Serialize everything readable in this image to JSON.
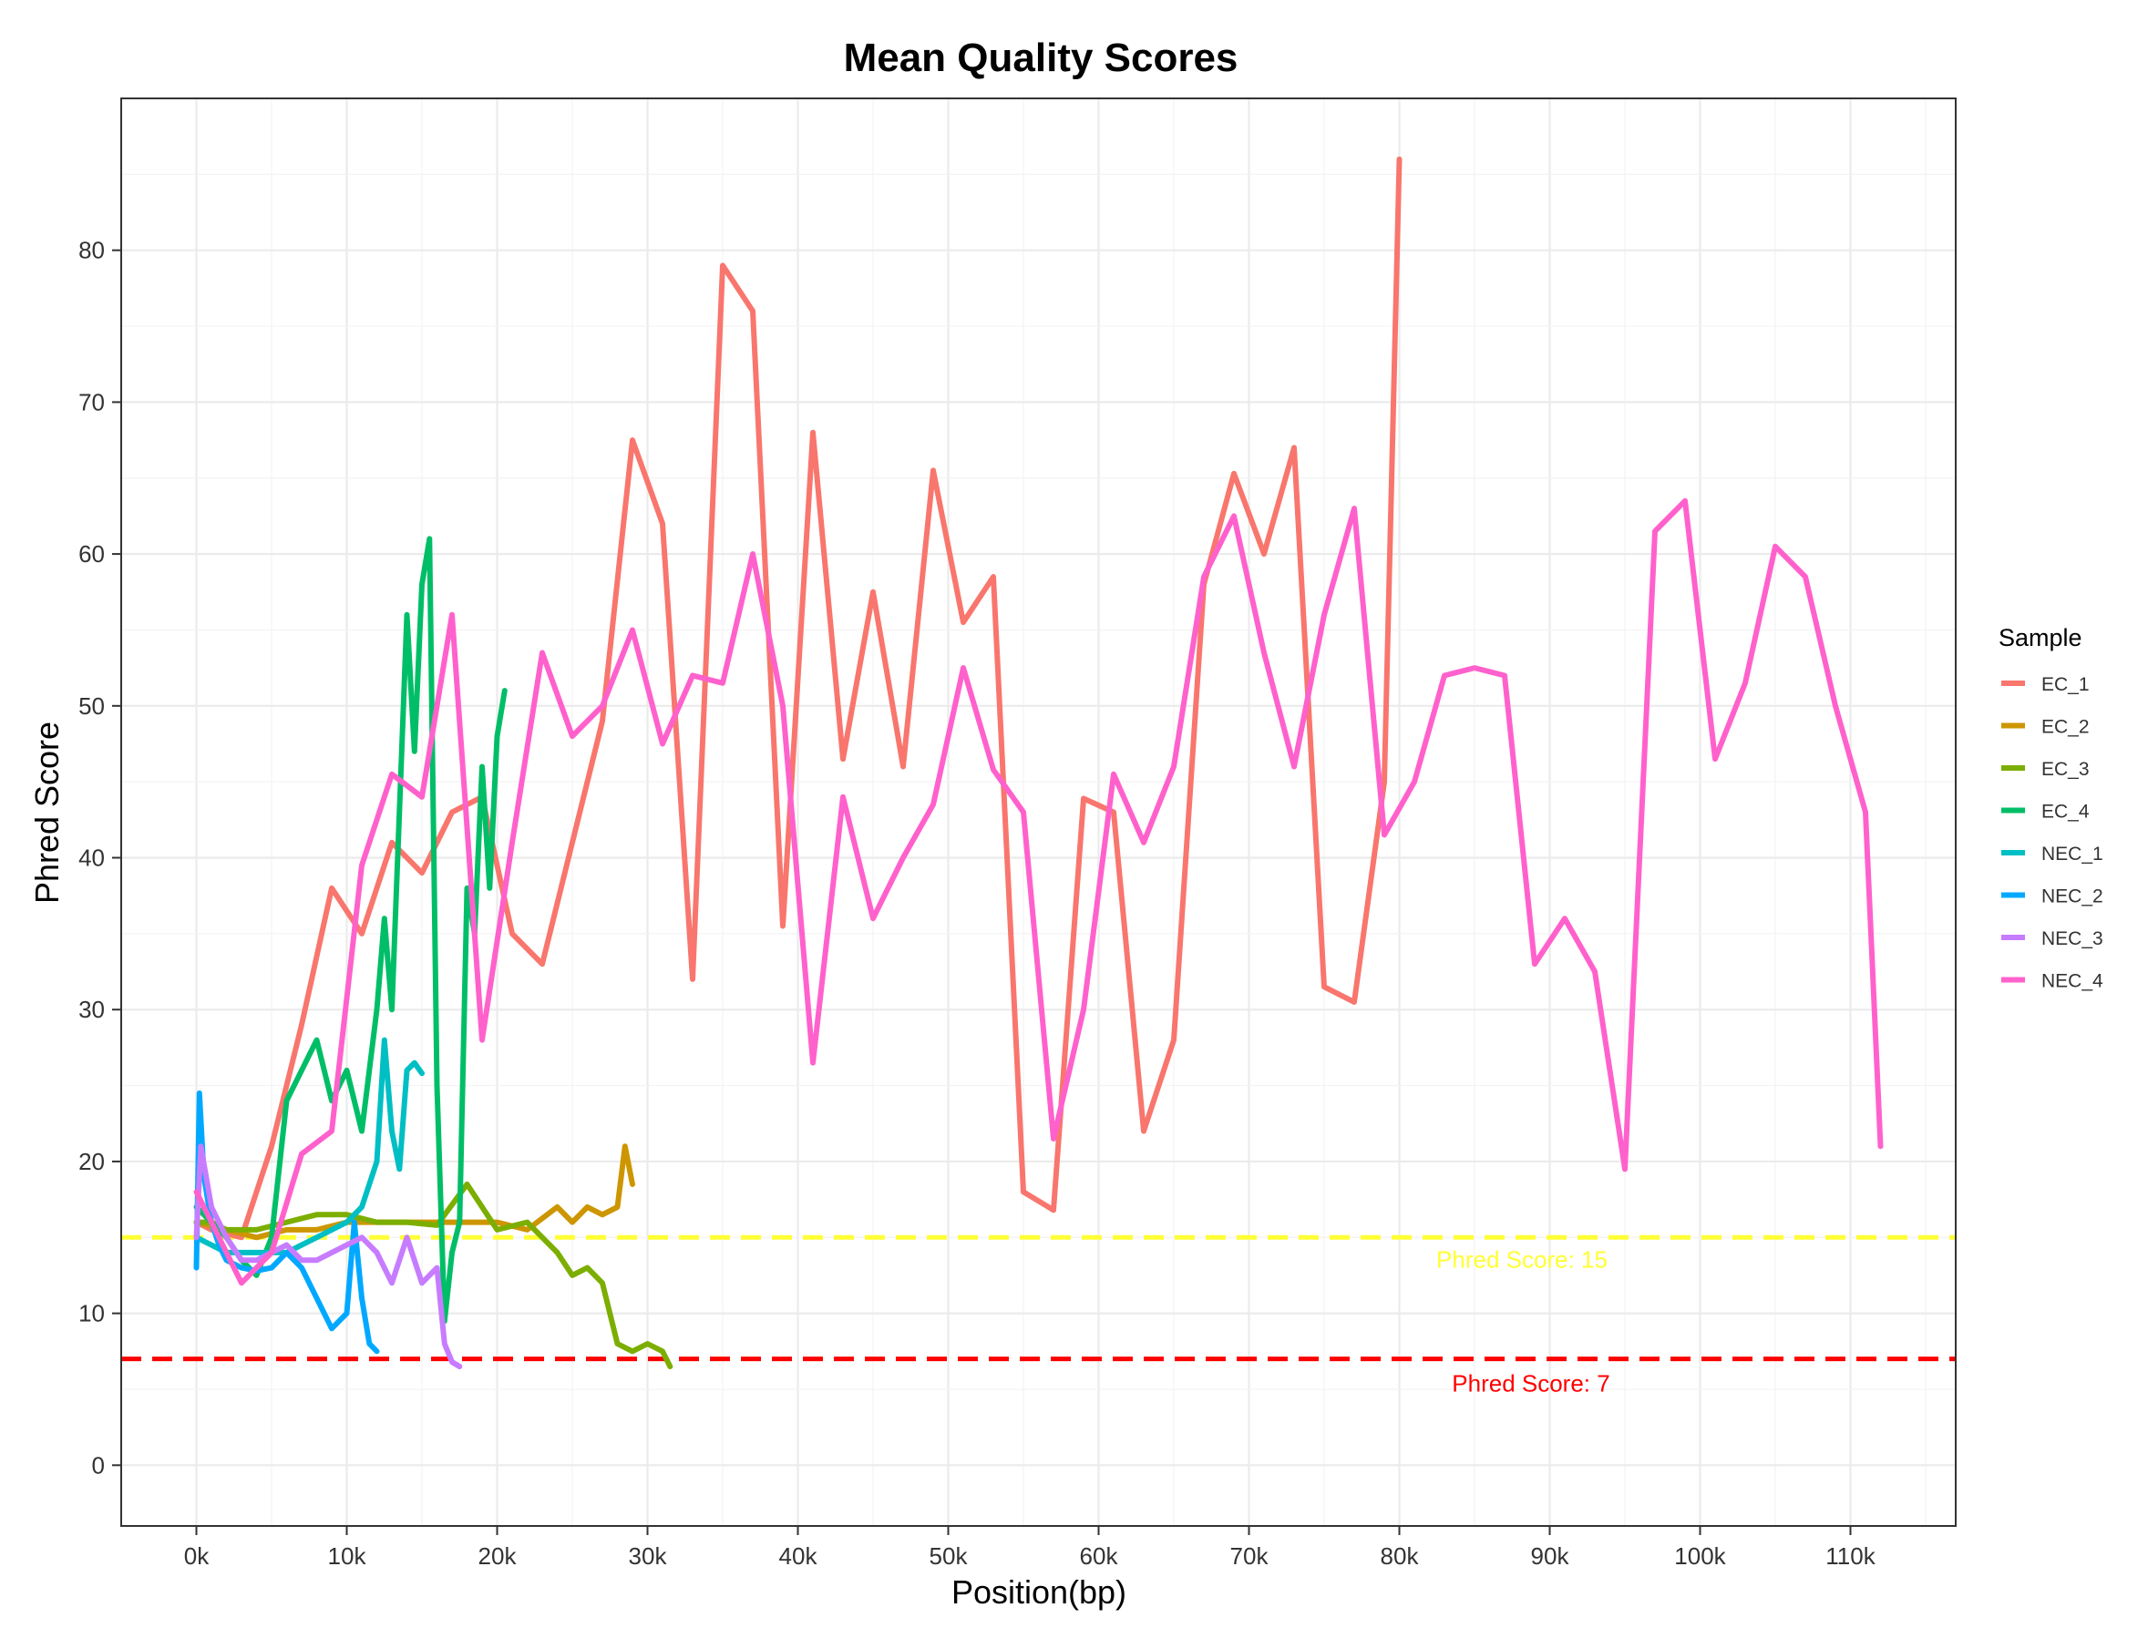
{
  "chart_data": {
    "type": "line",
    "title": "Mean Quality Scores",
    "xlabel": "Position(bp)",
    "ylabel": "Phred Score",
    "xlim": [
      -5000,
      117000
    ],
    "ylim": [
      -4,
      90
    ],
    "x_ticks": [
      0,
      10000,
      20000,
      30000,
      40000,
      50000,
      60000,
      70000,
      80000,
      90000,
      100000,
      110000
    ],
    "x_tick_labels": [
      "0k",
      "10k",
      "20k",
      "30k",
      "40k",
      "50k",
      "60k",
      "70k",
      "80k",
      "90k",
      "100k",
      "110k"
    ],
    "y_ticks": [
      0,
      10,
      20,
      30,
      40,
      50,
      60,
      70,
      80
    ],
    "y_tick_labels": [
      "0",
      "10",
      "20",
      "30",
      "40",
      "50",
      "60",
      "70",
      "80"
    ],
    "grid": true,
    "legend_title": "Sample",
    "legend_position": "right",
    "reference_lines": [
      {
        "y": 15,
        "color": "#ffff33",
        "label": "Phred Score: 15"
      },
      {
        "y": 7,
        "color": "#ff0000",
        "label": "Phred Score: 7"
      }
    ],
    "series": [
      {
        "name": "EC_1",
        "color": "#F8766D",
        "x": [
          0,
          1000,
          3000,
          5000,
          7000,
          9000,
          11000,
          13000,
          15000,
          17000,
          19000,
          21000,
          23000,
          25000,
          27000,
          29000,
          31000,
          33000,
          35000,
          37000,
          39000,
          41000,
          43000,
          45000,
          47000,
          49000,
          51000,
          53000,
          55000,
          57000,
          59000,
          61000,
          63000,
          65000,
          67000,
          69000,
          71000,
          73000,
          75000,
          77000,
          79000,
          80000
        ],
        "y": [
          16,
          15.5,
          15,
          21,
          29,
          38,
          35,
          41,
          39,
          43,
          44,
          35,
          33,
          41,
          49,
          67.5,
          62,
          32,
          79,
          76,
          35.5,
          68,
          46.5,
          57.5,
          46,
          65.5,
          55.5,
          58.5,
          18,
          16.8,
          43.9,
          43,
          22,
          28,
          58,
          65.3,
          60,
          67,
          31.5,
          30.5,
          45,
          86
        ]
      },
      {
        "name": "EC_2",
        "color": "#CD9600",
        "x": [
          0,
          2000,
          4000,
          6000,
          8000,
          10000,
          12000,
          14000,
          16000,
          18000,
          20000,
          22000,
          24000,
          25000,
          26000,
          27000,
          28000,
          28500,
          29000
        ],
        "y": [
          16,
          15.5,
          15,
          15.5,
          15.5,
          16,
          16,
          16,
          16,
          16,
          16,
          15.5,
          17,
          16,
          17,
          16.5,
          17,
          21,
          18.5
        ]
      },
      {
        "name": "EC_3",
        "color": "#7CAE00",
        "x": [
          0,
          1000,
          2000,
          4000,
          6000,
          8000,
          10000,
          12000,
          14000,
          16000,
          18000,
          20000,
          22000,
          24000,
          25000,
          26000,
          27000,
          28000,
          29000,
          30000,
          31000,
          31500
        ],
        "y": [
          16,
          16,
          15.5,
          15.5,
          16,
          16.5,
          16.5,
          16,
          16,
          15.8,
          18.5,
          15.5,
          16,
          14,
          12.5,
          13,
          12,
          8,
          7.5,
          8,
          7.5,
          6.5
        ]
      },
      {
        "name": "EC_4",
        "color": "#00BE67",
        "x": [
          0,
          1000,
          2000,
          3000,
          4000,
          5000,
          6000,
          7000,
          8000,
          9000,
          10000,
          11000,
          12000,
          12500,
          13000,
          14000,
          14500,
          15000,
          15500,
          16000,
          16500,
          17000,
          17500,
          18000,
          18500,
          19000,
          19500,
          20000,
          20500
        ],
        "y": [
          17,
          16,
          15,
          13.5,
          12.5,
          15,
          24,
          26,
          28,
          24,
          26,
          22,
          30,
          36,
          30,
          56,
          47,
          58,
          61,
          25,
          9.5,
          14,
          16,
          38,
          35,
          46,
          38,
          48,
          51
        ]
      },
      {
        "name": "NEC_1",
        "color": "#00BFC4",
        "x": [
          0,
          1000,
          2000,
          3000,
          4000,
          5000,
          6000,
          7000,
          8000,
          9000,
          10000,
          11000,
          12000,
          12500,
          13000,
          13500,
          14000,
          14500,
          15000
        ],
        "y": [
          15,
          14.5,
          14,
          14,
          14,
          14,
          14,
          14.5,
          15,
          15.5,
          16,
          17,
          20,
          28,
          22,
          19.5,
          26,
          26.5,
          25.8
        ]
      },
      {
        "name": "NEC_2",
        "color": "#00A9FF",
        "x": [
          0,
          200,
          500,
          1000,
          1500,
          2000,
          3000,
          4000,
          5000,
          6000,
          7000,
          8000,
          9000,
          10000,
          10500,
          11000,
          11500,
          12000
        ],
        "y": [
          13,
          24.5,
          19,
          16,
          14.5,
          13.5,
          13,
          12.8,
          13,
          14,
          13,
          11,
          9,
          10,
          16,
          11,
          8,
          7.5
        ]
      },
      {
        "name": "NEC_3",
        "color": "#C77CFF",
        "x": [
          0,
          300,
          1000,
          2000,
          3000,
          4000,
          5000,
          6000,
          7000,
          8000,
          9000,
          10000,
          11000,
          12000,
          13000,
          14000,
          15000,
          16000,
          16500,
          17000,
          17500
        ],
        "y": [
          15,
          21,
          17,
          15,
          13.5,
          13.5,
          14,
          14.5,
          13.5,
          13.5,
          14,
          14.5,
          15,
          14,
          12,
          15,
          12,
          13,
          8,
          6.8,
          6.5
        ]
      },
      {
        "name": "NEC_4",
        "color": "#FF61CC",
        "x": [
          0,
          1000,
          3000,
          5000,
          7000,
          9000,
          11000,
          13000,
          15000,
          17000,
          19000,
          21000,
          23000,
          25000,
          27000,
          29000,
          31000,
          33000,
          35000,
          37000,
          39000,
          41000,
          43000,
          45000,
          47000,
          49000,
          51000,
          53000,
          55000,
          57000,
          59000,
          61000,
          63000,
          65000,
          67000,
          69000,
          71000,
          73000,
          75000,
          77000,
          79000,
          81000,
          83000,
          85000,
          87000,
          89000,
          91000,
          93000,
          95000,
          97000,
          99000,
          101000,
          103000,
          105000,
          107000,
          109000,
          111000,
          112000
        ],
        "y": [
          18,
          16,
          12,
          14,
          20.5,
          22,
          39.5,
          45.5,
          44,
          56,
          28,
          41,
          53.5,
          48,
          50,
          55,
          47.5,
          52,
          51.5,
          60,
          50,
          26.5,
          44,
          36,
          40,
          43.5,
          52.5,
          45.8,
          43,
          21.5,
          30,
          45.5,
          41,
          46,
          58.5,
          62.5,
          53.5,
          46,
          56,
          63,
          41.5,
          45,
          52,
          52.5,
          52,
          33,
          36,
          32.5,
          19.5,
          61.5,
          63.5,
          46.5,
          51.5,
          60.5,
          58.5,
          50,
          43,
          21
        ]
      }
    ]
  }
}
